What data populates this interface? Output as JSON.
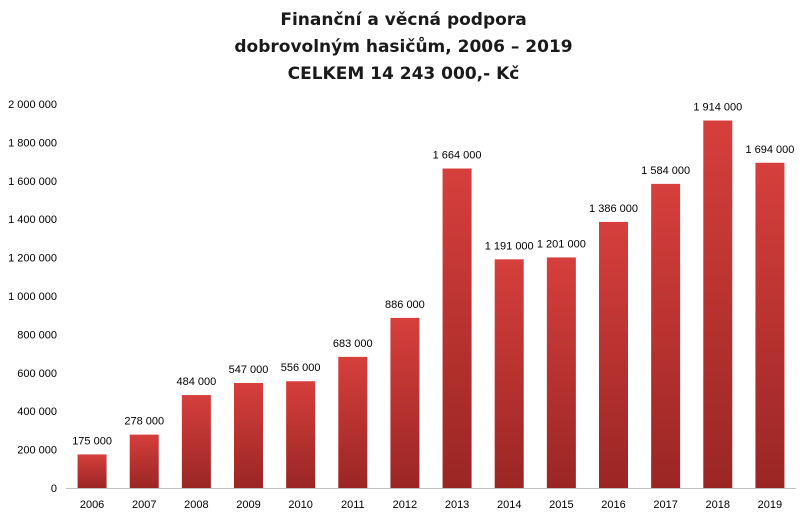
{
  "chart_data": {
    "type": "bar",
    "title": [
      "Finanční a věcná podpora",
      "dobrovolným  hasičům,  2006 – 2019",
      "CELKEM  14 243 000,- Kč"
    ],
    "categories": [
      "2006",
      "2007",
      "2008",
      "2009",
      "2010",
      "2011",
      "2012",
      "2013",
      "2014",
      "2015",
      "2016",
      "2017",
      "2018",
      "2019"
    ],
    "values": [
      175000,
      278000,
      484000,
      547000,
      556000,
      683000,
      886000,
      1664000,
      1191000,
      1201000,
      1386000,
      1584000,
      1914000,
      1694000
    ],
    "data_labels": [
      "175 000",
      "278 000",
      "484 000",
      "547 000",
      "556 000",
      "683 000",
      "886 000",
      "1 664 000",
      "1 191 000",
      "1 201 000",
      "1 386 000",
      "1 584 000",
      "1 914 000",
      "1 694 000"
    ],
    "ylim": [
      0,
      2000000
    ],
    "y_ticks": [
      0,
      200000,
      400000,
      600000,
      800000,
      1000000,
      1200000,
      1400000,
      1600000,
      1800000,
      2000000
    ],
    "y_tick_labels": [
      "0",
      "200 000",
      "400 000",
      "600 000",
      "800 000",
      "1 000 000",
      "1 200 000",
      "1 400 000",
      "1 600 000",
      "1 800 000",
      "2 000 000"
    ],
    "xlabel": "",
    "ylabel": "",
    "grid": false,
    "legend": "none",
    "colors": {
      "bar_top": "#d63f3c",
      "bar_bottom": "#9a2624",
      "axis": "#bfbfbf",
      "text": "#000000"
    }
  }
}
